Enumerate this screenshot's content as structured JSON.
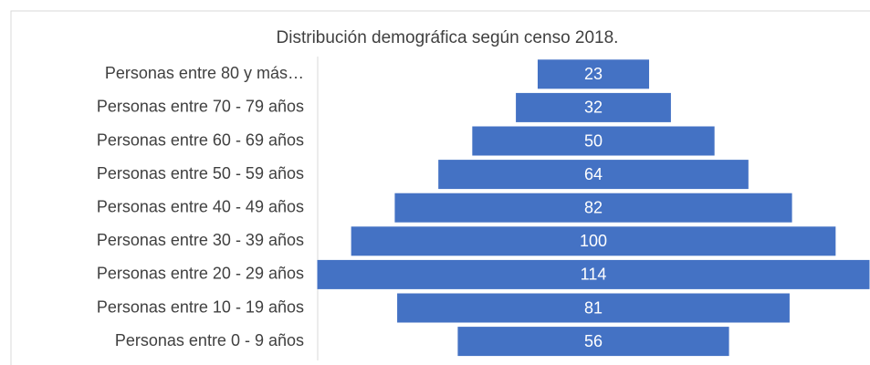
{
  "chart_data": {
    "type": "funnel",
    "title": "Distribución demográfica según censo 2018.",
    "categories": [
      "Personas entre 80  y más…",
      "Personas entre 70 - 79 años",
      "Personas entre 60 - 69 años",
      "Personas entre 50 - 59 años",
      "Personas entre 40 - 49 años",
      "Personas entre 30 - 39 años",
      "Personas entre 20 - 29 años",
      "Personas entre 10 - 19 años",
      "Personas entre 0 - 9 años"
    ],
    "values": [
      23,
      32,
      50,
      64,
      82,
      100,
      114,
      81,
      56
    ],
    "color": "#4472c4"
  }
}
